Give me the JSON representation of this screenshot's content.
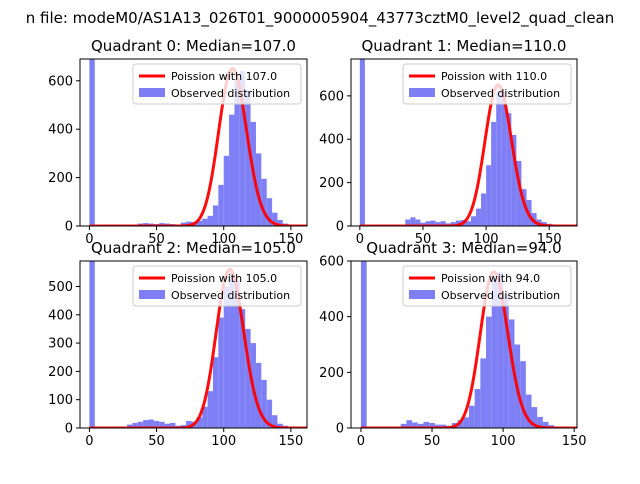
{
  "figure": {
    "suptitle": "n file: modeM0/AS1A13_026T01_9000005904_43773cztM0_level2_quad_clean"
  },
  "colors": {
    "poisson_line": "#ff0000",
    "histogram": "#7f7ff5",
    "axes": "#000000",
    "background": "#ffffff"
  },
  "chart_data": [
    {
      "type": "bar",
      "subtype": "histogram with poisson fit",
      "title": "Quadrant 0: Median=107.0",
      "legend": {
        "position": "top-right",
        "entries": [
          "Poission with 107.0",
          "Observed distribution"
        ]
      },
      "xlim": [
        -7,
        162
      ],
      "ylim": [
        0,
        690
      ],
      "xticks": [
        0,
        50,
        100,
        150
      ],
      "yticks": [
        0,
        200,
        400,
        600
      ],
      "poisson_mean": 107.0,
      "poisson_scale": 650,
      "bins": {
        "x": [
          0,
          28,
          32,
          36,
          40,
          44,
          48,
          52,
          56,
          60,
          64,
          68,
          72,
          76,
          80,
          84,
          88,
          92,
          96,
          100,
          104,
          108,
          112,
          116,
          120,
          124,
          128,
          132,
          136,
          140,
          144,
          148,
          152
        ],
        "y": [
          690,
          4,
          6,
          10,
          12,
          10,
          8,
          12,
          10,
          8,
          6,
          14,
          18,
          16,
          22,
          30,
          42,
          85,
          170,
          290,
          460,
          610,
          640,
          560,
          430,
          300,
          195,
          115,
          55,
          25,
          10,
          4,
          2
        ]
      }
    },
    {
      "type": "bar",
      "subtype": "histogram with poisson fit",
      "title": "Quadrant 1: Median=110.0",
      "legend": {
        "position": "top-right",
        "entries": [
          "Poission with 110.0",
          "Observed distribution"
        ]
      },
      "xlim": [
        -7,
        172
      ],
      "ylim": [
        0,
        770
      ],
      "xticks": [
        0,
        50,
        100,
        150
      ],
      "yticks": [
        0,
        200,
        400,
        600
      ],
      "poisson_mean": 110.0,
      "poisson_scale": 650,
      "bins": {
        "x": [
          0,
          36,
          40,
          44,
          48,
          52,
          56,
          60,
          64,
          68,
          72,
          76,
          80,
          84,
          88,
          92,
          96,
          100,
          104,
          108,
          112,
          116,
          120,
          124,
          128,
          132,
          136,
          140,
          144,
          148,
          152,
          156,
          160,
          164
        ],
        "y": [
          770,
          30,
          40,
          30,
          15,
          22,
          25,
          18,
          22,
          12,
          18,
          25,
          28,
          22,
          45,
          80,
          150,
          280,
          480,
          620,
          620,
          520,
          420,
          300,
          170,
          120,
          60,
          30,
          18,
          10,
          6,
          3,
          2,
          2
        ]
      }
    },
    {
      "type": "bar",
      "subtype": "histogram with poisson fit",
      "title": "Quadrant 2: Median=105.0",
      "legend": {
        "position": "top-right",
        "entries": [
          "Poission with 105.0",
          "Observed distribution"
        ]
      },
      "xlim": [
        -7,
        162
      ],
      "ylim": [
        0,
        590
      ],
      "xticks": [
        0,
        50,
        100,
        150
      ],
      "yticks": [
        0,
        100,
        200,
        300,
        400,
        500
      ],
      "poisson_mean": 105.0,
      "poisson_scale": 560,
      "bins": {
        "x": [
          0,
          28,
          32,
          36,
          40,
          44,
          48,
          52,
          56,
          60,
          64,
          68,
          72,
          76,
          80,
          84,
          88,
          92,
          96,
          100,
          104,
          108,
          112,
          116,
          120,
          124,
          128,
          132,
          136,
          140,
          144,
          148,
          152
        ],
        "y": [
          590,
          12,
          18,
          22,
          28,
          30,
          25,
          22,
          15,
          18,
          8,
          10,
          25,
          22,
          38,
          75,
          130,
          250,
          390,
          500,
          550,
          520,
          420,
          350,
          300,
          230,
          170,
          100,
          45,
          15,
          8,
          3,
          2
        ]
      }
    },
    {
      "type": "bar",
      "subtype": "histogram with poisson fit",
      "title": "Quadrant 3: Median=94.0",
      "legend": {
        "position": "top-right",
        "entries": [
          "Poission with 94.0",
          "Observed distribution"
        ]
      },
      "xlim": [
        -7,
        152
      ],
      "ylim": [
        0,
        600
      ],
      "xticks": [
        0,
        50,
        100,
        150
      ],
      "yticks": [
        0,
        200,
        400,
        600
      ],
      "poisson_mean": 94.0,
      "poisson_scale": 560,
      "bins": {
        "x": [
          0,
          28,
          32,
          36,
          40,
          44,
          48,
          52,
          56,
          60,
          64,
          68,
          72,
          76,
          80,
          84,
          88,
          92,
          96,
          100,
          104,
          108,
          112,
          116,
          120,
          124,
          128,
          132,
          136,
          140
        ],
        "y": [
          600,
          15,
          28,
          20,
          15,
          22,
          18,
          12,
          12,
          8,
          18,
          28,
          38,
          80,
          140,
          250,
          400,
          540,
          560,
          480,
          390,
          300,
          240,
          120,
          75,
          40,
          22,
          10,
          5,
          3
        ]
      }
    }
  ]
}
